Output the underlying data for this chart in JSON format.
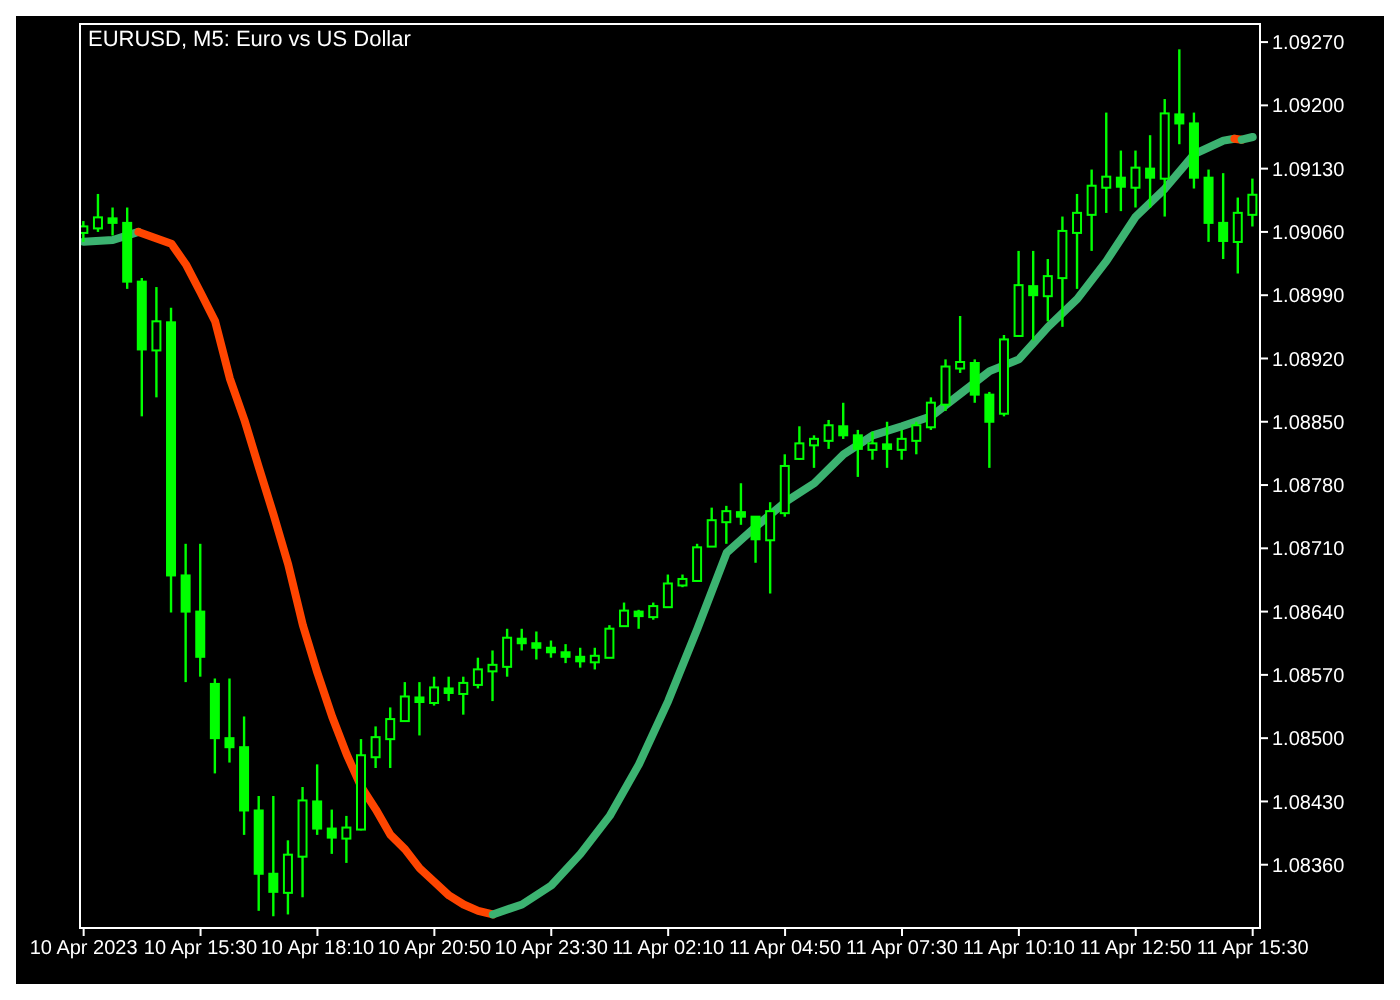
{
  "chart_data": {
    "type": "candlestick",
    "title": "EURUSD, M5:  Euro vs US Dollar",
    "color": "#00ff00",
    "x": [
      "2023-04-10T12:50",
      "2023-04-10T13:10",
      "2023-04-10T13:30",
      "2023-04-10T13:50",
      "2023-04-10T14:10",
      "2023-04-10T14:30",
      "2023-04-10T14:50",
      "2023-04-10T15:10",
      "2023-04-10T15:30",
      "2023-04-10T15:50",
      "2023-04-10T16:10",
      "2023-04-10T16:30",
      "2023-04-10T16:50",
      "2023-04-10T17:10",
      "2023-04-10T17:30",
      "2023-04-10T17:50",
      "2023-04-10T18:10",
      "2023-04-10T18:30",
      "2023-04-10T18:50",
      "2023-04-10T19:10",
      "2023-04-10T19:30",
      "2023-04-10T19:50",
      "2023-04-10T20:10",
      "2023-04-10T20:30",
      "2023-04-10T20:50",
      "2023-04-10T21:10",
      "2023-04-10T21:30",
      "2023-04-10T21:50",
      "2023-04-10T22:10",
      "2023-04-10T22:30",
      "2023-04-10T22:50",
      "2023-04-10T23:10",
      "2023-04-10T23:30",
      "2023-04-10T23:50",
      "2023-04-11T00:10",
      "2023-04-11T00:30",
      "2023-04-11T00:50",
      "2023-04-11T01:10",
      "2023-04-11T01:30",
      "2023-04-11T01:50",
      "2023-04-11T02:10",
      "2023-04-11T02:30",
      "2023-04-11T02:50",
      "2023-04-11T03:10",
      "2023-04-11T03:30",
      "2023-04-11T03:50",
      "2023-04-11T04:10",
      "2023-04-11T04:30",
      "2023-04-11T04:50",
      "2023-04-11T05:10",
      "2023-04-11T05:30",
      "2023-04-11T05:50",
      "2023-04-11T06:10",
      "2023-04-11T06:30",
      "2023-04-11T06:50",
      "2023-04-11T07:10",
      "2023-04-11T07:30",
      "2023-04-11T07:50",
      "2023-04-11T08:10",
      "2023-04-11T08:30",
      "2023-04-11T08:50",
      "2023-04-11T09:10",
      "2023-04-11T09:30",
      "2023-04-11T09:50",
      "2023-04-11T10:10",
      "2023-04-11T10:30",
      "2023-04-11T10:50",
      "2023-04-11T11:10",
      "2023-04-11T11:30",
      "2023-04-11T11:50",
      "2023-04-11T12:10",
      "2023-04-11T12:30",
      "2023-04-11T12:50",
      "2023-04-11T13:10",
      "2023-04-11T13:30",
      "2023-04-11T13:50",
      "2023-04-11T14:10",
      "2023-04-11T14:30",
      "2023-04-11T14:50",
      "2023-04-11T15:10",
      "2023-04-11T15:30"
    ],
    "ohlc": [
      [
        1.0906,
        1.09072,
        1.09049,
        1.09065
      ],
      [
        1.09065,
        1.09102,
        1.0906,
        1.09075
      ],
      [
        1.09075,
        1.09087,
        1.09056,
        1.0907
      ],
      [
        1.0907,
        1.09087,
        1.08997,
        1.09005
      ],
      [
        1.09005,
        1.09009,
        1.08856,
        1.0893
      ],
      [
        1.0893,
        1.08999,
        1.08877,
        1.0896
      ],
      [
        1.0896,
        1.08976,
        1.08639,
        1.0868
      ],
      [
        1.0868,
        1.08715,
        1.08562,
        1.0864
      ],
      [
        1.0864,
        1.08715,
        1.08568,
        1.0859
      ],
      [
        1.0856,
        1.08566,
        1.08461,
        1.085
      ],
      [
        1.085,
        1.08566,
        1.08473,
        1.0849
      ],
      [
        1.0849,
        1.08524,
        1.08393,
        1.0842
      ],
      [
        1.0842,
        1.08436,
        1.08309,
        1.0835
      ],
      [
        1.0835,
        1.08436,
        1.08303,
        1.0833
      ],
      [
        1.0833,
        1.08387,
        1.08305,
        1.0837
      ],
      [
        1.0837,
        1.08446,
        1.08324,
        1.0843
      ],
      [
        1.0843,
        1.08471,
        1.08393,
        1.084
      ],
      [
        1.084,
        1.08421,
        1.08372,
        1.0839
      ],
      [
        1.0839,
        1.08414,
        1.08362,
        1.084
      ],
      [
        1.084,
        1.08499,
        1.08398,
        1.0848
      ],
      [
        1.0848,
        1.08513,
        1.08467,
        1.085
      ],
      [
        1.085,
        1.08534,
        1.08467,
        1.0852
      ],
      [
        1.0852,
        1.08562,
        1.0852,
        1.08545
      ],
      [
        1.08545,
        1.08562,
        1.08503,
        1.0854
      ],
      [
        1.0854,
        1.08568,
        1.08536,
        1.08555
      ],
      [
        1.08555,
        1.08568,
        1.08541,
        1.0855
      ],
      [
        1.0855,
        1.08568,
        1.08526,
        1.0856
      ],
      [
        1.0856,
        1.08589,
        1.08555,
        1.08575
      ],
      [
        1.08575,
        1.08597,
        1.08541,
        1.0858
      ],
      [
        1.0858,
        1.08621,
        1.08568,
        1.0861
      ],
      [
        1.0861,
        1.08621,
        1.08597,
        1.08605
      ],
      [
        1.08605,
        1.08618,
        1.08587,
        1.086
      ],
      [
        1.086,
        1.08608,
        1.08589,
        1.08595
      ],
      [
        1.08595,
        1.08604,
        1.08583,
        1.0859
      ],
      [
        1.0859,
        1.086,
        1.08578,
        1.08585
      ],
      [
        1.08585,
        1.086,
        1.08576,
        1.0859
      ],
      [
        1.0859,
        1.08625,
        1.08589,
        1.0862
      ],
      [
        1.08625,
        1.0865,
        1.08625,
        1.0864
      ],
      [
        1.0864,
        1.08642,
        1.08621,
        1.08635
      ],
      [
        1.08635,
        1.0865,
        1.08631,
        1.08645
      ],
      [
        1.08646,
        1.08681,
        1.08646,
        1.0867
      ],
      [
        1.0867,
        1.08681,
        1.08667,
        1.08675
      ],
      [
        1.08675,
        1.08715,
        1.08673,
        1.0871
      ],
      [
        1.08713,
        1.08755,
        1.08713,
        1.0874
      ],
      [
        1.0874,
        1.08757,
        1.08715,
        1.0875
      ],
      [
        1.0875,
        1.08782,
        1.08736,
        1.08745
      ],
      [
        1.08745,
        1.08745,
        1.08694,
        1.0872
      ],
      [
        1.0872,
        1.08761,
        1.0866,
        1.0875
      ],
      [
        1.0875,
        1.08814,
        1.08745,
        1.088
      ],
      [
        1.0881,
        1.08845,
        1.08808,
        1.08825
      ],
      [
        1.08825,
        1.08835,
        1.08799,
        1.0883
      ],
      [
        1.0883,
        1.08852,
        1.0882,
        1.08845
      ],
      [
        1.08845,
        1.08871,
        1.08831,
        1.08835
      ],
      [
        1.08835,
        1.08841,
        1.08789,
        1.0882
      ],
      [
        1.0882,
        1.08839,
        1.08808,
        1.08825
      ],
      [
        1.08825,
        1.0885,
        1.08799,
        1.0882
      ],
      [
        1.0882,
        1.08841,
        1.08808,
        1.0883
      ],
      [
        1.0883,
        1.0885,
        1.08814,
        1.08845
      ],
      [
        1.08845,
        1.08877,
        1.08841,
        1.0887
      ],
      [
        1.0887,
        1.08919,
        1.08862,
        1.0891
      ],
      [
        1.0891,
        1.08967,
        1.08904,
        1.08915
      ],
      [
        1.08915,
        1.08919,
        1.08871,
        1.0888
      ],
      [
        1.0888,
        1.08883,
        1.08799,
        1.0885
      ],
      [
        1.0886,
        1.08946,
        1.08856,
        1.0894
      ],
      [
        1.08946,
        1.09039,
        1.08946,
        1.09
      ],
      [
        1.09,
        1.09039,
        1.0894,
        1.0899
      ],
      [
        1.0899,
        1.0903,
        1.08961,
        1.0901
      ],
      [
        1.0901,
        1.09077,
        1.08955,
        1.0906
      ],
      [
        1.0906,
        1.09102,
        1.08997,
        1.0908
      ],
      [
        1.0908,
        1.09129,
        1.09039,
        1.0911
      ],
      [
        1.0911,
        1.09192,
        1.09081,
        1.0912
      ],
      [
        1.0912,
        1.0915,
        1.09083,
        1.0911
      ],
      [
        1.0911,
        1.0915,
        1.09087,
        1.0913
      ],
      [
        1.0913,
        1.09167,
        1.09087,
        1.0912
      ],
      [
        1.0912,
        1.09207,
        1.09077,
        1.0919
      ],
      [
        1.0919,
        1.09262,
        1.09157,
        1.0918
      ],
      [
        1.0918,
        1.09192,
        1.09108,
        1.0912
      ],
      [
        1.0912,
        1.09129,
        1.09049,
        1.0907
      ],
      [
        1.0907,
        1.09125,
        1.0903,
        1.0905
      ],
      [
        1.0905,
        1.09098,
        1.09014,
        1.0908
      ],
      [
        1.0908,
        1.09119,
        1.09066,
        1.091
      ]
    ],
    "series": [
      {
        "type": "line",
        "color": "#3cb371",
        "x": [
          "2023-04-10T12:50",
          "2023-04-10T13:30",
          "2023-04-10T14:05"
        ],
        "values": [
          1.09049,
          1.09051,
          1.0906
        ]
      },
      {
        "type": "line",
        "color": "#ff4500",
        "x": [
          "2023-04-10T14:05",
          "2023-04-10T14:50",
          "2023-04-10T15:10",
          "2023-04-10T15:30",
          "2023-04-10T15:50",
          "2023-04-10T16:10",
          "2023-04-10T16:30",
          "2023-04-10T16:50",
          "2023-04-10T17:10",
          "2023-04-10T17:30",
          "2023-04-10T17:50",
          "2023-04-10T18:10",
          "2023-04-10T18:30",
          "2023-04-10T18:50",
          "2023-04-10T19:10",
          "2023-04-10T19:30",
          "2023-04-10T19:50",
          "2023-04-10T20:10",
          "2023-04-10T20:30",
          "2023-04-10T20:50",
          "2023-04-10T21:10",
          "2023-04-10T21:30",
          "2023-04-10T21:50",
          "2023-04-10T22:10"
        ],
        "values": [
          1.0906,
          1.09047,
          1.09024,
          1.08993,
          1.08961,
          1.08898,
          1.08852,
          1.08799,
          1.08747,
          1.08692,
          1.08625,
          1.08572,
          1.08524,
          1.08482,
          1.08446,
          1.08421,
          1.08393,
          1.08377,
          1.08356,
          1.08341,
          1.08326,
          1.08316,
          1.08309,
          1.08305
        ]
      },
      {
        "type": "line",
        "color": "#3cb371",
        "x": [
          "2023-04-10T22:10",
          "2023-04-10T22:50",
          "2023-04-10T23:30",
          "2023-04-11T00:10",
          "2023-04-11T00:50",
          "2023-04-11T01:30",
          "2023-04-11T02:10",
          "2023-04-11T02:50",
          "2023-04-11T03:30",
          "2023-04-11T04:10",
          "2023-04-11T04:50",
          "2023-04-11T05:30",
          "2023-04-11T06:10",
          "2023-04-11T06:50",
          "2023-04-11T07:30",
          "2023-04-11T08:10",
          "2023-04-11T08:50",
          "2023-04-11T09:30",
          "2023-04-11T10:10",
          "2023-04-11T10:50",
          "2023-04-11T11:30",
          "2023-04-11T12:10",
          "2023-04-11T12:50",
          "2023-04-11T13:30",
          "2023-04-11T14:10",
          "2023-04-11T14:50",
          "2023-04-11T15:05"
        ],
        "values": [
          1.08305,
          1.08316,
          1.08337,
          1.08372,
          1.08414,
          1.08471,
          1.08541,
          1.08621,
          1.08705,
          1.08734,
          1.08761,
          1.08782,
          1.08814,
          1.08835,
          1.08845,
          1.08856,
          1.08881,
          1.08906,
          1.08919,
          1.08955,
          1.08986,
          1.09028,
          1.09077,
          1.09108,
          1.09146,
          1.09161,
          1.09163
        ]
      },
      {
        "type": "line",
        "color": "#ff4500",
        "x": [
          "2023-04-11T15:05",
          "2023-04-11T15:15"
        ],
        "values": [
          1.09163,
          1.09162
        ]
      },
      {
        "type": "line",
        "color": "#3cb371",
        "x": [
          "2023-04-11T15:15",
          "2023-04-11T15:30"
        ],
        "values": [
          1.09162,
          1.09165
        ]
      }
    ],
    "xlim": [
      "2023-04-10T12:45",
      "2023-04-11T15:40"
    ],
    "xticks": [
      {
        "value": "2023-04-10T12:50",
        "label": "10 Apr 2023"
      },
      {
        "value": "2023-04-10T15:30",
        "label": "10 Apr 15:30"
      },
      {
        "value": "2023-04-10T18:10",
        "label": "10 Apr 18:10"
      },
      {
        "value": "2023-04-10T20:50",
        "label": "10 Apr 20:50"
      },
      {
        "value": "2023-04-10T23:30",
        "label": "10 Apr 23:30"
      },
      {
        "value": "2023-04-11T02:10",
        "label": "11 Apr 02:10"
      },
      {
        "value": "2023-04-11T04:50",
        "label": "11 Apr 04:50"
      },
      {
        "value": "2023-04-11T07:30",
        "label": "11 Apr 07:30"
      },
      {
        "value": "2023-04-11T10:10",
        "label": "11 Apr 10:10"
      },
      {
        "value": "2023-04-11T12:50",
        "label": "11 Apr 12:50"
      },
      {
        "value": "2023-04-11T15:30",
        "label": "11 Apr 15:30"
      }
    ],
    "ylim": [
      1.0829,
      1.0929
    ],
    "yticks": [
      {
        "value": 1.0836,
        "label": "1.08360"
      },
      {
        "value": 1.0843,
        "label": "1.08430"
      },
      {
        "value": 1.085,
        "label": "1.08500"
      },
      {
        "value": 1.0857,
        "label": "1.08570"
      },
      {
        "value": 1.0864,
        "label": "1.08640"
      },
      {
        "value": 1.0871,
        "label": "1.08710"
      },
      {
        "value": 1.0878,
        "label": "1.08780"
      },
      {
        "value": 1.0885,
        "label": "1.08850"
      },
      {
        "value": 1.0892,
        "label": "1.08920"
      },
      {
        "value": 1.0899,
        "label": "1.08990"
      },
      {
        "value": 1.0906,
        "label": "1.09060"
      },
      {
        "value": 1.0913,
        "label": "1.09130"
      },
      {
        "value": 1.092,
        "label": "1.09200"
      },
      {
        "value": 1.0927,
        "label": "1.09270"
      }
    ],
    "marker": "none"
  }
}
